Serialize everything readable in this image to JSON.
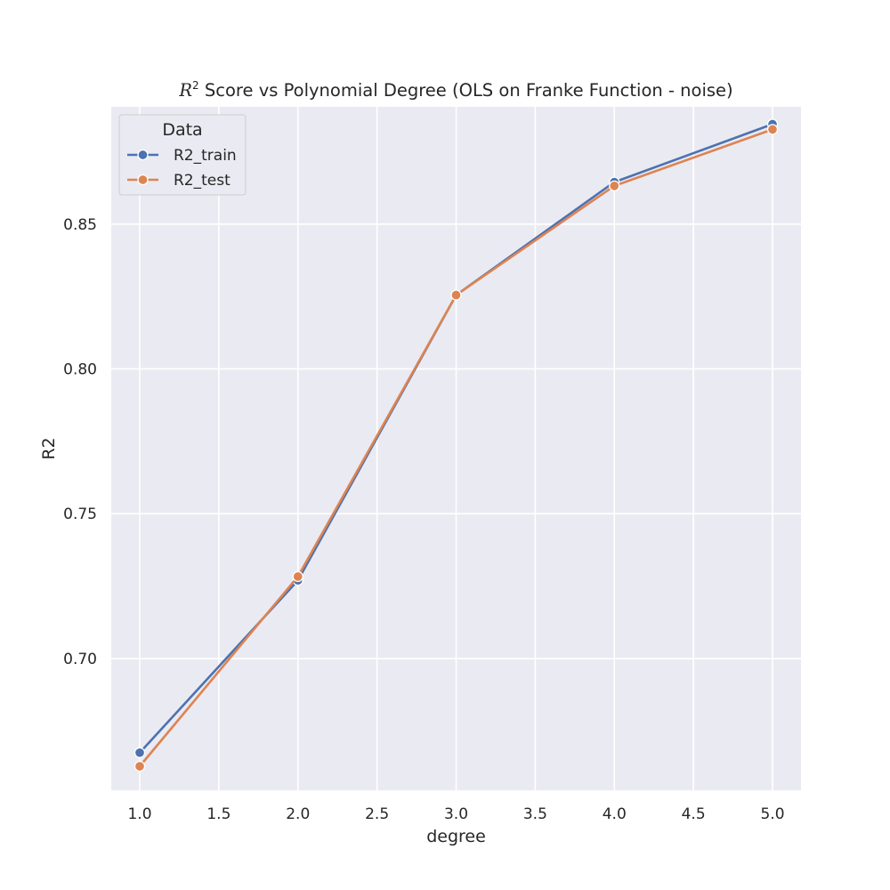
{
  "chart_data": {
    "type": "line",
    "title": {
      "symbol": "R",
      "superscript": "2",
      "text": " Score vs Polynomial Degree (OLS on Franke Function - noise)"
    },
    "xlabel": "degree",
    "ylabel": "R2",
    "xlim": [
      0.82,
      5.18
    ],
    "ylim": [
      0.6545,
      0.8905
    ],
    "x_ticks": [
      1.0,
      1.5,
      2.0,
      2.5,
      3.0,
      3.5,
      4.0,
      4.5,
      5.0
    ],
    "x_tick_labels": [
      "1.0",
      "1.5",
      "2.0",
      "2.5",
      "3.0",
      "3.5",
      "4.0",
      "4.5",
      "5.0"
    ],
    "y_ticks": [
      0.7,
      0.75,
      0.8,
      0.85
    ],
    "y_tick_labels": [
      "0.70",
      "0.75",
      "0.80",
      "0.85"
    ],
    "grid": true,
    "legend": {
      "title": "Data",
      "placement": "top-left"
    },
    "x": [
      1.0,
      2.0,
      3.0,
      4.0,
      5.0
    ],
    "series": [
      {
        "name": "R2_train",
        "color": "#4c72b0",
        "values": [
          0.6675,
          0.727,
          0.8255,
          0.8645,
          0.8845
        ]
      },
      {
        "name": "R2_test",
        "color": "#dd8452",
        "values": [
          0.6628,
          0.7283,
          0.8255,
          0.8632,
          0.8827
        ]
      }
    ],
    "style": {
      "axes_facecolor": "#eaeaf2",
      "grid_color": "#ffffff",
      "text_color": "#262626"
    }
  }
}
